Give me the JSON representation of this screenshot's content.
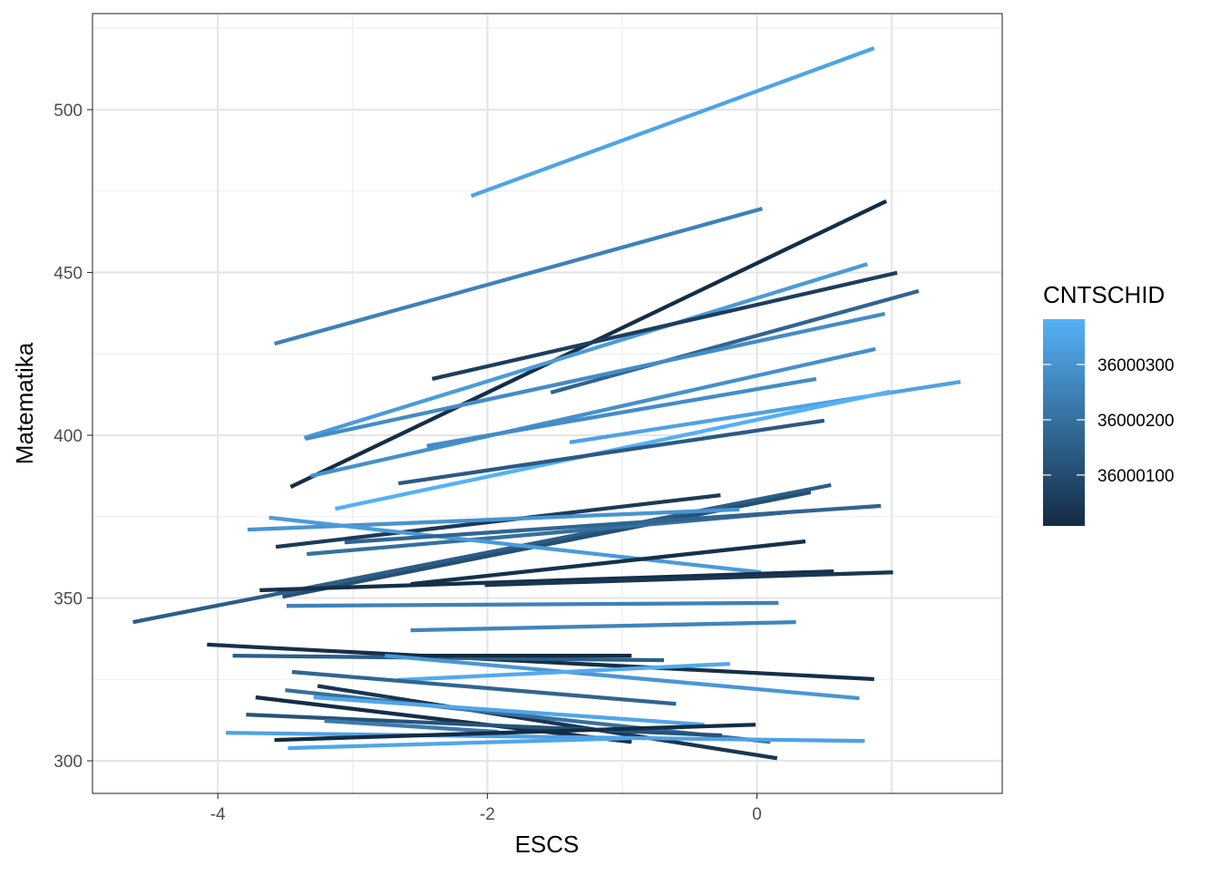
{
  "chart_data": {
    "type": "line",
    "title": "",
    "xlabel": "ESCS",
    "ylabel": "Matematika",
    "xlim": [
      -4.93,
      1.82
    ],
    "ylim": [
      290,
      529.5
    ],
    "x_ticks": [
      -4,
      -2,
      0
    ],
    "x_tick_labels": [
      "-4",
      "-2",
      "0"
    ],
    "y_ticks": [
      300,
      350,
      400,
      450,
      500
    ],
    "y_tick_labels": [
      "300",
      "350",
      "400",
      "450",
      "500"
    ],
    "grid": true,
    "legend": {
      "title": "CNTSCHID",
      "placement": "right",
      "range": [
        36000008,
        36000382
      ],
      "ticks": [
        36000100,
        36000200,
        36000300
      ],
      "tick_labels": [
        "36000100",
        "36000200",
        "36000300"
      ],
      "low_color": "#132B43",
      "high_color": "#56B1F7"
    },
    "series": [
      {
        "id": 36000345,
        "x": [
          -2.12,
          0.87
        ],
        "y": [
          473.5,
          518.9
        ]
      },
      {
        "id": 36000250,
        "x": [
          -3.58,
          0.04
        ],
        "y": [
          428.1,
          469.6
        ]
      },
      {
        "id": 36000015,
        "x": [
          -3.46,
          0.96
        ],
        "y": [
          384.1,
          471.9
        ]
      },
      {
        "id": 36000320,
        "x": [
          -3.36,
          0.82
        ],
        "y": [
          399.2,
          452.6
        ]
      },
      {
        "id": 36000060,
        "x": [
          -2.41,
          1.04
        ],
        "y": [
          417.3,
          449.9
        ]
      },
      {
        "id": 36000170,
        "x": [
          -1.53,
          1.2
        ],
        "y": [
          413.1,
          444.3
        ]
      },
      {
        "id": 36000280,
        "x": [
          -3.35,
          0.95
        ],
        "y": [
          398.9,
          437.3
        ]
      },
      {
        "id": 36000290,
        "x": [
          -3.31,
          0.88
        ],
        "y": [
          387.5,
          426.5
        ]
      },
      {
        "id": 36000280,
        "x": [
          -2.45,
          0.44
        ],
        "y": [
          396.7,
          417.3
        ]
      },
      {
        "id": 36000340,
        "x": [
          -1.39,
          1.51
        ],
        "y": [
          397.8,
          416.4
        ]
      },
      {
        "id": 36000380,
        "x": [
          -3.13,
          0.99
        ],
        "y": [
          377.4,
          413.4
        ]
      },
      {
        "id": 36000140,
        "x": [
          -2.66,
          0.5
        ],
        "y": [
          385.2,
          404.5
        ]
      },
      {
        "id": 36000150,
        "x": [
          -4.63,
          0.55
        ],
        "y": [
          342.6,
          384.7
        ]
      },
      {
        "id": 36000050,
        "x": [
          -3.57,
          -0.27
        ],
        "y": [
          365.7,
          381.6
        ]
      },
      {
        "id": 36000110,
        "x": [
          -3.52,
          0.4
        ],
        "y": [
          350.4,
          382.5
        ]
      },
      {
        "id": 36000300,
        "x": [
          -3.78,
          -0.13
        ],
        "y": [
          371.0,
          377.2
        ]
      },
      {
        "id": 36000200,
        "x": [
          -3.34,
          0.22
        ],
        "y": [
          363.5,
          376.3
        ]
      },
      {
        "id": 36000320,
        "x": [
          -3.62,
          0.03
        ],
        "y": [
          374.7,
          357.9
        ]
      },
      {
        "id": 36000170,
        "x": [
          -3.06,
          0.92
        ],
        "y": [
          367.1,
          378.3
        ]
      },
      {
        "id": 36000025,
        "x": [
          -2.57,
          0.36
        ],
        "y": [
          354.3,
          367.4
        ]
      },
      {
        "id": 36000020,
        "x": [
          -3.69,
          0.57
        ],
        "y": [
          352.4,
          358.2
        ]
      },
      {
        "id": 36000040,
        "x": [
          -2.02,
          1.01
        ],
        "y": [
          354.0,
          357.9
        ]
      },
      {
        "id": 36000250,
        "x": [
          -3.49,
          0.16
        ],
        "y": [
          347.6,
          348.5
        ]
      },
      {
        "id": 36000260,
        "x": [
          -2.57,
          0.29
        ],
        "y": [
          340.1,
          342.6
        ]
      },
      {
        "id": 36000020,
        "x": [
          -4.08,
          0.87
        ],
        "y": [
          335.7,
          325.1
        ]
      },
      {
        "id": 36000150,
        "x": [
          -3.89,
          -0.69
        ],
        "y": [
          332.3,
          330.9
        ]
      },
      {
        "id": 36000010,
        "x": [
          -2.72,
          -0.93
        ],
        "y": [
          332.3,
          332.3
        ]
      },
      {
        "id": 36000310,
        "x": [
          -2.76,
          0.76
        ],
        "y": [
          332.3,
          319.2
        ]
      },
      {
        "id": 36000360,
        "x": [
          -2.67,
          -0.2
        ],
        "y": [
          324.8,
          329.8
        ]
      },
      {
        "id": 36000170,
        "x": [
          -3.45,
          -0.6
        ],
        "y": [
          327.3,
          317.5
        ]
      },
      {
        "id": 36000040,
        "x": [
          -3.26,
          0.15
        ],
        "y": [
          323.0,
          300.8
        ]
      },
      {
        "id": 36000200,
        "x": [
          -3.5,
          0.1
        ],
        "y": [
          321.7,
          305.8
        ]
      },
      {
        "id": 36000350,
        "x": [
          -3.29,
          -0.39
        ],
        "y": [
          319.5,
          311.1
        ]
      },
      {
        "id": 36000015,
        "x": [
          -3.72,
          -0.93
        ],
        "y": [
          319.5,
          305.8
        ]
      },
      {
        "id": 36000120,
        "x": [
          -3.79,
          -0.26
        ],
        "y": [
          314.2,
          307.8
        ]
      },
      {
        "id": 36000230,
        "x": [
          -3.21,
          -1.92
        ],
        "y": [
          312.3,
          308.9
        ]
      },
      {
        "id": 36000340,
        "x": [
          -3.94,
          0.8
        ],
        "y": [
          308.6,
          306.1
        ]
      },
      {
        "id": 36000010,
        "x": [
          -3.58,
          -0.01
        ],
        "y": [
          306.4,
          311.1
        ]
      },
      {
        "id": 36000350,
        "x": [
          -3.48,
          -0.91
        ],
        "y": [
          303.9,
          307.0
        ]
      }
    ]
  }
}
